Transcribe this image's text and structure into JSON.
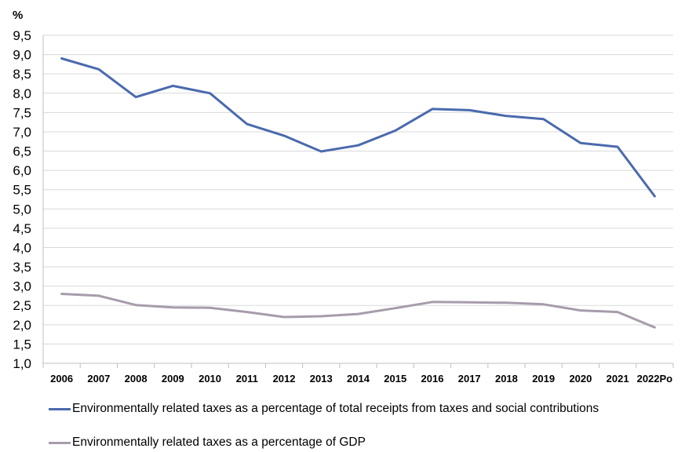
{
  "chart_data": {
    "type": "line",
    "unit_label": "%",
    "categories": [
      "2006",
      "2007",
      "2008",
      "2009",
      "2010",
      "2011",
      "2012",
      "2013",
      "2014",
      "2015",
      "2016",
      "2017",
      "2018",
      "2019",
      "2020",
      "2021",
      "2022Po"
    ],
    "ylim": [
      1.0,
      9.5
    ],
    "yticks": [
      "1,0",
      "1,5",
      "2,0",
      "2,5",
      "3,0",
      "3,5",
      "4,0",
      "4,5",
      "5,0",
      "5,5",
      "6,0",
      "6,5",
      "7,0",
      "7,5",
      "8,0",
      "8,5",
      "9,0",
      "9,5"
    ],
    "grid": true,
    "legend_position": "bottom",
    "series": [
      {
        "name": "Environmentally related taxes as a percentage of total receipts from taxes and social contributions",
        "color": "#4a6aad",
        "values": [
          8.9,
          8.62,
          7.9,
          8.19,
          8.0,
          7.2,
          6.9,
          6.49,
          6.65,
          7.03,
          7.59,
          7.56,
          7.41,
          7.33,
          6.71,
          6.61,
          5.33
        ]
      },
      {
        "name": "Environmentally related taxes as a percentage of GDP",
        "color": "#a79cab",
        "values": [
          2.8,
          2.75,
          2.51,
          2.45,
          2.44,
          2.33,
          2.2,
          2.22,
          2.28,
          2.43,
          2.59,
          2.58,
          2.57,
          2.53,
          2.37,
          2.33,
          1.93
        ]
      }
    ]
  }
}
